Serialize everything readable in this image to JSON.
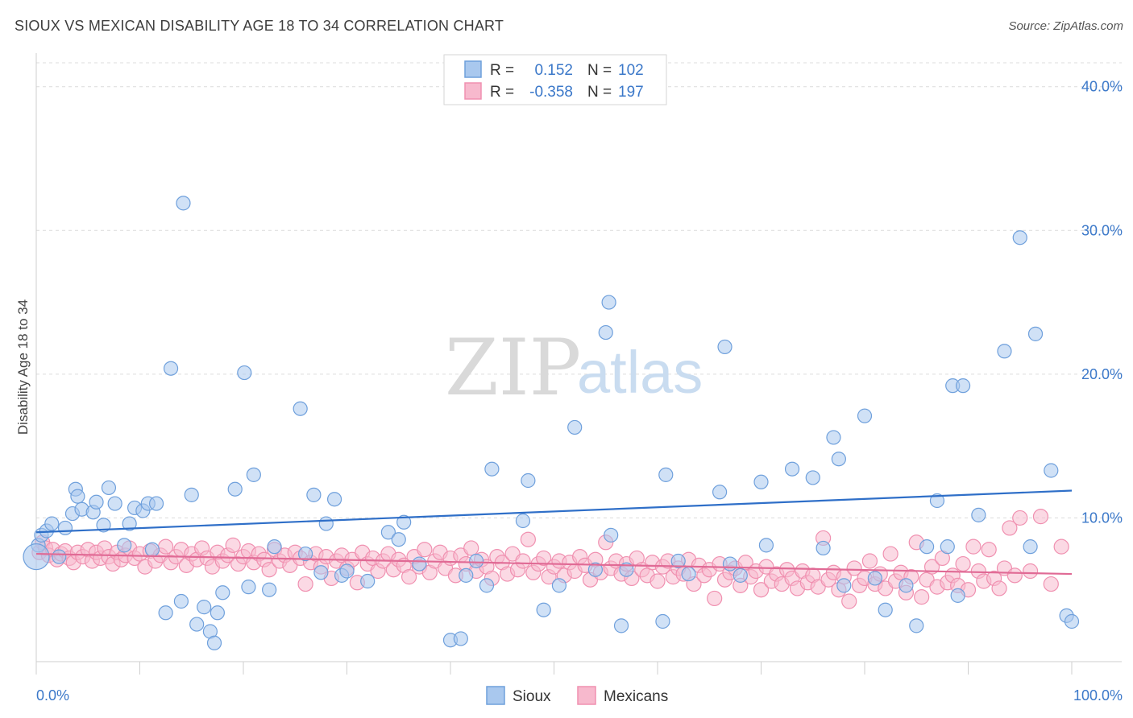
{
  "header": {
    "title": "SIOUX VS MEXICAN DISABILITY AGE 18 TO 34 CORRELATION CHART",
    "source": "Source: ZipAtlas.com"
  },
  "watermark": {
    "part1": "ZIP",
    "part2": "atlas"
  },
  "legend": {
    "rows": [
      {
        "r_label": "R =",
        "r_value": "0.152",
        "n_label": "N =",
        "n_value": "102",
        "color": "#6fa0dc"
      },
      {
        "r_label": "R =",
        "r_value": "-0.358",
        "n_label": "N =",
        "n_value": "197",
        "color": "#f090b0"
      }
    ]
  },
  "bottom_legend": [
    {
      "label": "Sioux",
      "color": "#6fa0dc"
    },
    {
      "label": "Mexicans",
      "color": "#f090b0"
    }
  ],
  "chart_data": {
    "type": "scatter",
    "title": "SIOUX VS MEXICAN DISABILITY AGE 18 TO 34 CORRELATION CHART",
    "ylabel": "Disability Age 18 to 34",
    "xlabel": "",
    "xlim": [
      0,
      100
    ],
    "ylim": [
      0,
      42
    ],
    "x_tick_labels": [
      "0.0%",
      "100.0%"
    ],
    "y_ticks": [
      10,
      20,
      30,
      40
    ],
    "y_tick_labels": [
      "10.0%",
      "20.0%",
      "30.0%",
      "40.0%"
    ],
    "grid": true,
    "legend_position": "top-center",
    "colors": {
      "sioux_fill": "#a9c8ee",
      "sioux_stroke": "#6fa0dc",
      "sioux_line": "#2f6fc8",
      "mex_fill": "#f7b9cd",
      "mex_stroke": "#f090b0",
      "mex_line": "#e06a95"
    },
    "series": [
      {
        "name": "Sioux",
        "R": 0.152,
        "N": 102,
        "trend": {
          "x": [
            0,
            100
          ],
          "y": [
            9.0,
            11.9
          ]
        },
        "points": [
          [
            0.2,
            8.1
          ],
          [
            0.5,
            8.8
          ],
          [
            1.0,
            9.1
          ],
          [
            1.5,
            9.6
          ],
          [
            2.2,
            7.3
          ],
          [
            2.8,
            9.3
          ],
          [
            3.5,
            10.3
          ],
          [
            3.8,
            12.0
          ],
          [
            4.0,
            11.5
          ],
          [
            4.4,
            10.6
          ],
          [
            5.5,
            10.4
          ],
          [
            5.8,
            11.1
          ],
          [
            6.5,
            9.5
          ],
          [
            7.0,
            12.1
          ],
          [
            7.6,
            11.0
          ],
          [
            8.5,
            8.1
          ],
          [
            9.0,
            9.6
          ],
          [
            9.5,
            10.7
          ],
          [
            10.3,
            10.5
          ],
          [
            10.8,
            11.0
          ],
          [
            11.2,
            7.8
          ],
          [
            11.6,
            11.0
          ],
          [
            12.5,
            3.4
          ],
          [
            13.0,
            20.4
          ],
          [
            14.0,
            4.2
          ],
          [
            14.2,
            31.9
          ],
          [
            15.0,
            11.6
          ],
          [
            15.5,
            2.6
          ],
          [
            16.2,
            3.8
          ],
          [
            16.8,
            2.1
          ],
          [
            17.2,
            1.3
          ],
          [
            17.5,
            3.4
          ],
          [
            18.0,
            4.8
          ],
          [
            19.2,
            12.0
          ],
          [
            20.1,
            20.1
          ],
          [
            20.5,
            5.2
          ],
          [
            21.0,
            13.0
          ],
          [
            22.5,
            5.0
          ],
          [
            23.0,
            8.0
          ],
          [
            25.5,
            17.6
          ],
          [
            26.0,
            7.5
          ],
          [
            26.8,
            11.6
          ],
          [
            27.5,
            6.2
          ],
          [
            28.0,
            9.6
          ],
          [
            28.8,
            11.3
          ],
          [
            29.5,
            6.0
          ],
          [
            30.0,
            6.3
          ],
          [
            32.0,
            5.6
          ],
          [
            34.0,
            9.0
          ],
          [
            35.0,
            8.5
          ],
          [
            35.5,
            9.7
          ],
          [
            37.0,
            6.8
          ],
          [
            40.0,
            1.5
          ],
          [
            41.0,
            1.6
          ],
          [
            41.5,
            6.0
          ],
          [
            42.5,
            7.0
          ],
          [
            43.5,
            5.3
          ],
          [
            44.0,
            13.4
          ],
          [
            47.0,
            9.8
          ],
          [
            47.5,
            12.6
          ],
          [
            49.0,
            3.6
          ],
          [
            50.5,
            5.3
          ],
          [
            52.0,
            16.3
          ],
          [
            54.0,
            6.4
          ],
          [
            55.0,
            22.9
          ],
          [
            55.3,
            25.0
          ],
          [
            55.5,
            8.8
          ],
          [
            56.5,
            2.5
          ],
          [
            57.0,
            6.4
          ],
          [
            60.5,
            2.8
          ],
          [
            60.8,
            13.0
          ],
          [
            62.0,
            7.0
          ],
          [
            63.0,
            6.1
          ],
          [
            66.0,
            11.8
          ],
          [
            66.5,
            21.9
          ],
          [
            67.0,
            6.8
          ],
          [
            68.0,
            6.0
          ],
          [
            70.0,
            12.5
          ],
          [
            70.5,
            8.1
          ],
          [
            73.0,
            13.4
          ],
          [
            75.0,
            12.8
          ],
          [
            76.0,
            7.9
          ],
          [
            77.0,
            15.6
          ],
          [
            77.5,
            14.1
          ],
          [
            78.0,
            5.3
          ],
          [
            80.0,
            17.1
          ],
          [
            81.0,
            5.8
          ],
          [
            82.0,
            3.6
          ],
          [
            84.0,
            5.3
          ],
          [
            85.0,
            2.5
          ],
          [
            86.0,
            8.0
          ],
          [
            87.0,
            11.2
          ],
          [
            88.0,
            8.0
          ],
          [
            88.5,
            19.2
          ],
          [
            89.0,
            4.6
          ],
          [
            89.5,
            19.2
          ],
          [
            91.0,
            10.2
          ],
          [
            93.5,
            21.6
          ],
          [
            95.0,
            29.5
          ],
          [
            96.0,
            8.0
          ],
          [
            96.5,
            22.8
          ],
          [
            98.0,
            13.3
          ],
          [
            99.5,
            3.2
          ],
          [
            100.0,
            2.8
          ]
        ]
      },
      {
        "name": "Mexicans",
        "R": -0.358,
        "N": 197,
        "trend": {
          "x": [
            0,
            100
          ],
          "y": [
            7.5,
            6.1
          ]
        },
        "points": [
          [
            0.3,
            7.6
          ],
          [
            0.6,
            8.3
          ],
          [
            0.9,
            7.9
          ],
          [
            1.2,
            7.4
          ],
          [
            1.6,
            7.8
          ],
          [
            2.0,
            7.1
          ],
          [
            2.4,
            7.5
          ],
          [
            2.8,
            7.7
          ],
          [
            3.2,
            7.2
          ],
          [
            3.6,
            6.9
          ],
          [
            4.0,
            7.6
          ],
          [
            4.5,
            7.3
          ],
          [
            5.0,
            7.8
          ],
          [
            5.4,
            7.0
          ],
          [
            5.8,
            7.6
          ],
          [
            6.2,
            7.2
          ],
          [
            6.6,
            7.9
          ],
          [
            7.0,
            7.3
          ],
          [
            7.4,
            6.8
          ],
          [
            7.8,
            7.6
          ],
          [
            8.2,
            7.1
          ],
          [
            8.6,
            7.4
          ],
          [
            9.0,
            7.9
          ],
          [
            9.5,
            7.2
          ],
          [
            10.0,
            7.5
          ],
          [
            10.5,
            6.6
          ],
          [
            11.0,
            7.7
          ],
          [
            11.5,
            7.0
          ],
          [
            12.0,
            7.4
          ],
          [
            12.5,
            8.0
          ],
          [
            13.0,
            6.9
          ],
          [
            13.5,
            7.3
          ],
          [
            14.0,
            7.8
          ],
          [
            14.5,
            6.7
          ],
          [
            15.0,
            7.5
          ],
          [
            15.5,
            7.1
          ],
          [
            16.0,
            7.9
          ],
          [
            16.5,
            7.2
          ],
          [
            17.0,
            6.6
          ],
          [
            17.5,
            7.6
          ],
          [
            18.0,
            7.0
          ],
          [
            18.5,
            7.4
          ],
          [
            19.0,
            8.1
          ],
          [
            19.5,
            6.8
          ],
          [
            20.0,
            7.3
          ],
          [
            20.5,
            7.7
          ],
          [
            21.0,
            6.9
          ],
          [
            21.5,
            7.5
          ],
          [
            22.0,
            7.1
          ],
          [
            22.5,
            6.4
          ],
          [
            23.0,
            7.8
          ],
          [
            23.5,
            7.0
          ],
          [
            24.0,
            7.4
          ],
          [
            24.5,
            6.7
          ],
          [
            25.0,
            7.6
          ],
          [
            25.5,
            7.2
          ],
          [
            26.0,
            5.4
          ],
          [
            26.5,
            6.9
          ],
          [
            27.0,
            7.5
          ],
          [
            27.5,
            6.6
          ],
          [
            28.0,
            7.3
          ],
          [
            28.5,
            5.8
          ],
          [
            29.0,
            7.0
          ],
          [
            29.5,
            7.4
          ],
          [
            30.0,
            6.5
          ],
          [
            30.5,
            7.1
          ],
          [
            31.0,
            5.5
          ],
          [
            31.5,
            7.6
          ],
          [
            32.0,
            6.8
          ],
          [
            32.5,
            7.2
          ],
          [
            33.0,
            6.3
          ],
          [
            33.5,
            7.0
          ],
          [
            34.0,
            7.5
          ],
          [
            34.5,
            6.4
          ],
          [
            35.0,
            7.1
          ],
          [
            35.5,
            6.7
          ],
          [
            36.0,
            5.9
          ],
          [
            36.5,
            7.3
          ],
          [
            37.0,
            6.6
          ],
          [
            37.5,
            7.8
          ],
          [
            38.0,
            6.2
          ],
          [
            38.5,
            7.0
          ],
          [
            39.0,
            7.6
          ],
          [
            39.5,
            6.5
          ],
          [
            40.0,
            7.2
          ],
          [
            40.5,
            6.0
          ],
          [
            41.0,
            7.4
          ],
          [
            41.5,
            6.8
          ],
          [
            42.0,
            7.9
          ],
          [
            42.5,
            6.3
          ],
          [
            43.0,
            7.1
          ],
          [
            43.5,
            6.6
          ],
          [
            44.0,
            5.8
          ],
          [
            44.5,
            7.3
          ],
          [
            45.0,
            6.9
          ],
          [
            45.5,
            6.1
          ],
          [
            46.0,
            7.5
          ],
          [
            46.5,
            6.4
          ],
          [
            47.0,
            7.0
          ],
          [
            47.5,
            8.5
          ],
          [
            48.0,
            6.2
          ],
          [
            48.5,
            6.8
          ],
          [
            49.0,
            7.2
          ],
          [
            49.5,
            5.9
          ],
          [
            50.0,
            6.6
          ],
          [
            50.5,
            7.0
          ],
          [
            51.0,
            6.0
          ],
          [
            51.5,
            6.9
          ],
          [
            52.0,
            6.3
          ],
          [
            52.5,
            7.3
          ],
          [
            53.0,
            6.7
          ],
          [
            53.5,
            5.7
          ],
          [
            54.0,
            7.1
          ],
          [
            54.5,
            6.2
          ],
          [
            55.0,
            8.3
          ],
          [
            55.5,
            6.5
          ],
          [
            56.0,
            7.0
          ],
          [
            56.5,
            6.1
          ],
          [
            57.0,
            6.8
          ],
          [
            57.5,
            5.8
          ],
          [
            58.0,
            7.2
          ],
          [
            58.5,
            6.4
          ],
          [
            59.0,
            6.0
          ],
          [
            59.5,
            6.9
          ],
          [
            60.0,
            5.6
          ],
          [
            60.5,
            6.6
          ],
          [
            61.0,
            7.0
          ],
          [
            61.5,
            5.9
          ],
          [
            62.0,
            6.5
          ],
          [
            62.5,
            6.1
          ],
          [
            63.0,
            7.1
          ],
          [
            63.5,
            5.4
          ],
          [
            64.0,
            6.7
          ],
          [
            64.5,
            6.0
          ],
          [
            65.0,
            6.4
          ],
          [
            65.5,
            4.4
          ],
          [
            66.0,
            6.8
          ],
          [
            66.5,
            5.7
          ],
          [
            67.0,
            6.2
          ],
          [
            67.5,
            6.5
          ],
          [
            68.0,
            5.3
          ],
          [
            68.5,
            6.9
          ],
          [
            69.0,
            5.9
          ],
          [
            69.5,
            6.3
          ],
          [
            70.0,
            5.0
          ],
          [
            70.5,
            6.6
          ],
          [
            71.0,
            5.6
          ],
          [
            71.5,
            6.1
          ],
          [
            72.0,
            5.4
          ],
          [
            72.5,
            6.4
          ],
          [
            73.0,
            5.8
          ],
          [
            73.5,
            5.1
          ],
          [
            74.0,
            6.3
          ],
          [
            74.5,
            5.5
          ],
          [
            75.0,
            6.0
          ],
          [
            75.5,
            5.2
          ],
          [
            76.0,
            8.6
          ],
          [
            76.5,
            5.7
          ],
          [
            77.0,
            6.2
          ],
          [
            77.5,
            5.0
          ],
          [
            78.0,
            5.9
          ],
          [
            78.5,
            4.2
          ],
          [
            79.0,
            6.5
          ],
          [
            79.5,
            5.3
          ],
          [
            80.0,
            5.8
          ],
          [
            80.5,
            7.0
          ],
          [
            81.0,
            5.4
          ],
          [
            81.5,
            6.1
          ],
          [
            82.0,
            5.1
          ],
          [
            82.5,
            7.5
          ],
          [
            83.0,
            5.6
          ],
          [
            83.5,
            6.2
          ],
          [
            84.0,
            4.8
          ],
          [
            84.5,
            5.9
          ],
          [
            85.0,
            8.3
          ],
          [
            85.5,
            4.5
          ],
          [
            86.0,
            5.7
          ],
          [
            86.5,
            6.6
          ],
          [
            87.0,
            5.2
          ],
          [
            87.5,
            7.2
          ],
          [
            88.0,
            5.5
          ],
          [
            88.5,
            6.0
          ],
          [
            89.0,
            5.3
          ],
          [
            89.5,
            6.8
          ],
          [
            90.0,
            5.0
          ],
          [
            90.5,
            8.0
          ],
          [
            91.0,
            6.3
          ],
          [
            91.5,
            5.6
          ],
          [
            92.0,
            7.8
          ],
          [
            92.5,
            5.8
          ],
          [
            93.0,
            5.1
          ],
          [
            93.5,
            6.5
          ],
          [
            94.0,
            9.3
          ],
          [
            94.5,
            6.0
          ],
          [
            95.0,
            10.0
          ],
          [
            96.0,
            6.3
          ],
          [
            97.0,
            10.1
          ],
          [
            98.0,
            5.4
          ],
          [
            99.0,
            8.0
          ]
        ]
      }
    ]
  }
}
